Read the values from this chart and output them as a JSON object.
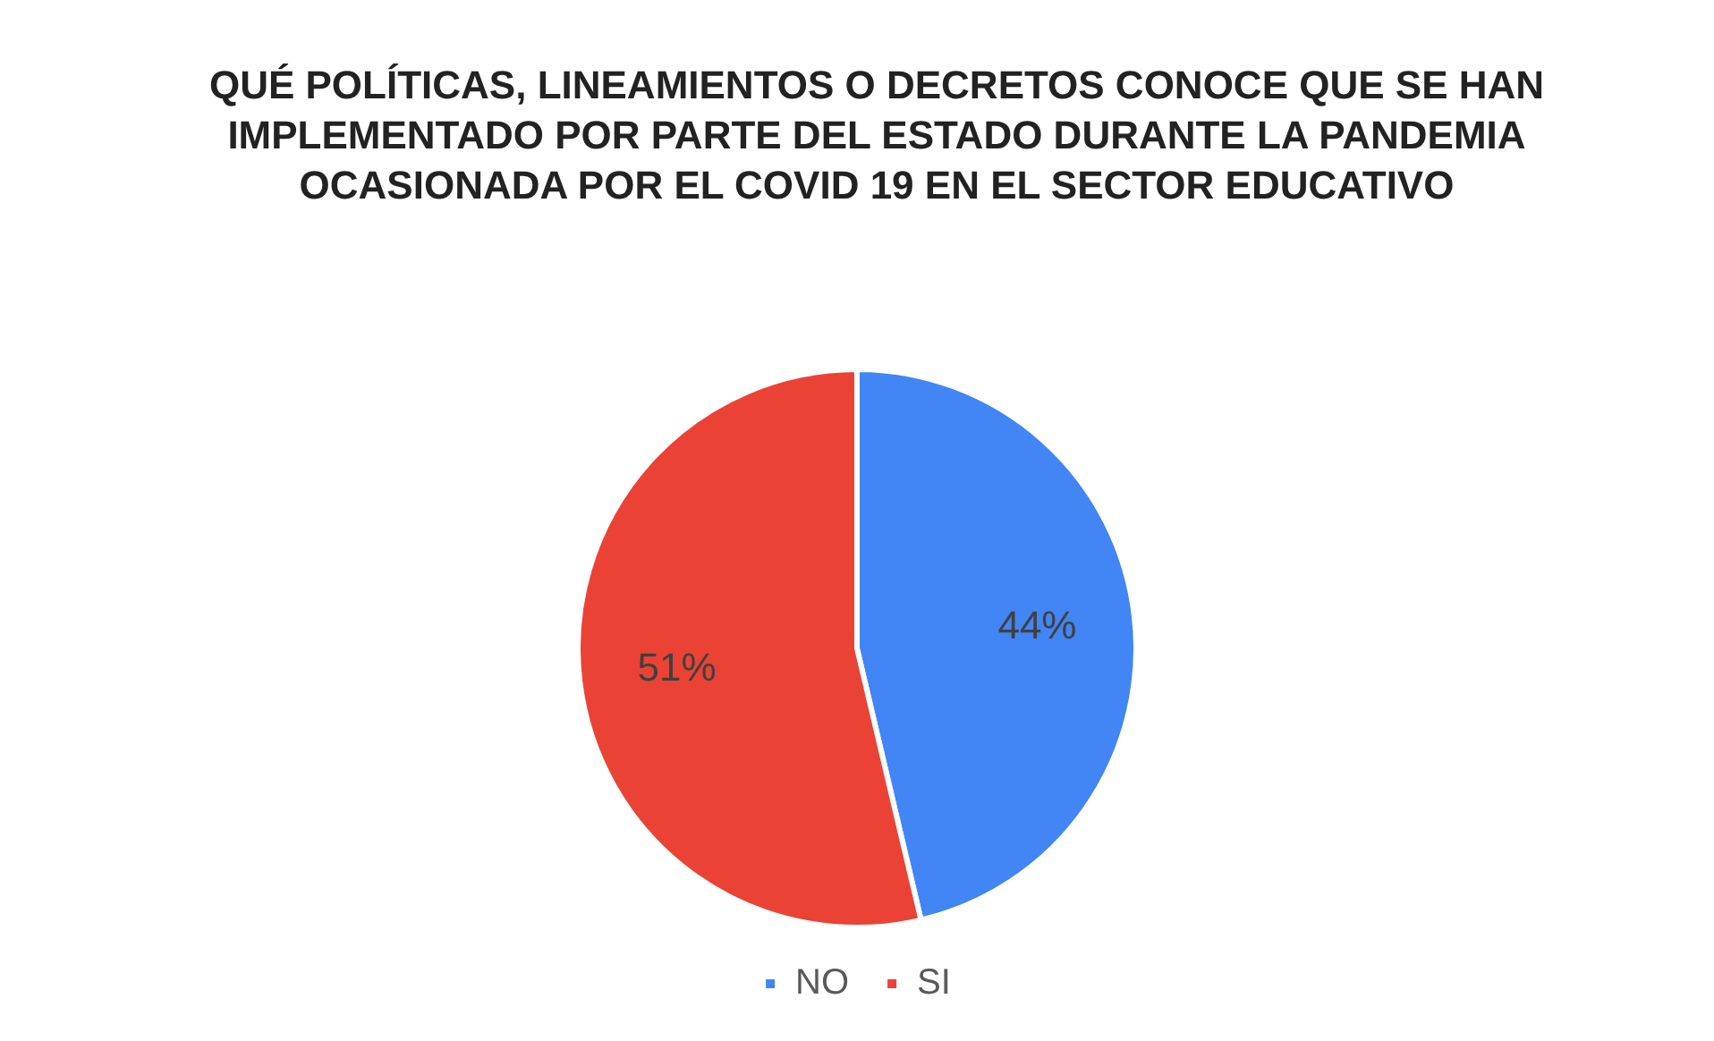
{
  "chart_data": {
    "type": "pie",
    "title": "QUÉ POLÍTICAS, LINEAMIENTOS O DECRETOS CONOCE QUE SE HAN IMPLEMENTADO POR PARTE DEL ESTADO DURANTE LA PANDEMIA OCASIONADA POR EL COVID 19 EN EL SECTOR EDUCATIVO",
    "categories": [
      "NO",
      "SI"
    ],
    "values": [
      44,
      51
    ],
    "colors": [
      "#4285f4",
      "#ea4335"
    ],
    "value_labels": [
      "44%",
      "51%"
    ],
    "legend": "bottom"
  }
}
